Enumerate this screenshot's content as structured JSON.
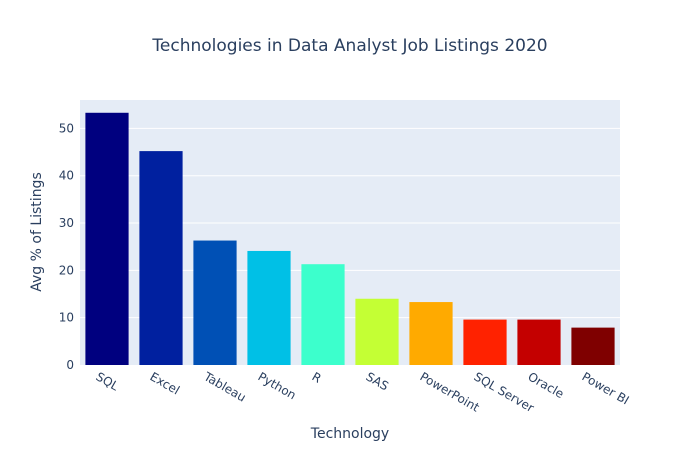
{
  "chart_data": {
    "type": "bar",
    "title": "Technologies in Data Analyst Job Listings 2020",
    "xlabel": "Technology",
    "ylabel": "Avg % of Listings",
    "categories": [
      "SQL",
      "Excel",
      "Tableau",
      "Python",
      "R",
      "SAS",
      "PowerPoint",
      "SQL Server",
      "Oracle",
      "Power BI"
    ],
    "values": [
      53.3,
      45.2,
      26.3,
      24.1,
      21.3,
      14.0,
      13.3,
      9.6,
      9.6,
      7.9
    ],
    "colors": [
      "#00007f",
      "#00209f",
      "#0050b5",
      "#00c0e6",
      "#3cffcc",
      "#c4ff34",
      "#ffaa00",
      "#ff2200",
      "#c40000",
      "#7f0000"
    ],
    "ylim": [
      0,
      56
    ],
    "yticks": [
      0,
      10,
      20,
      30,
      40,
      50
    ],
    "grid": true,
    "plot_background": "#e5ecf6"
  }
}
